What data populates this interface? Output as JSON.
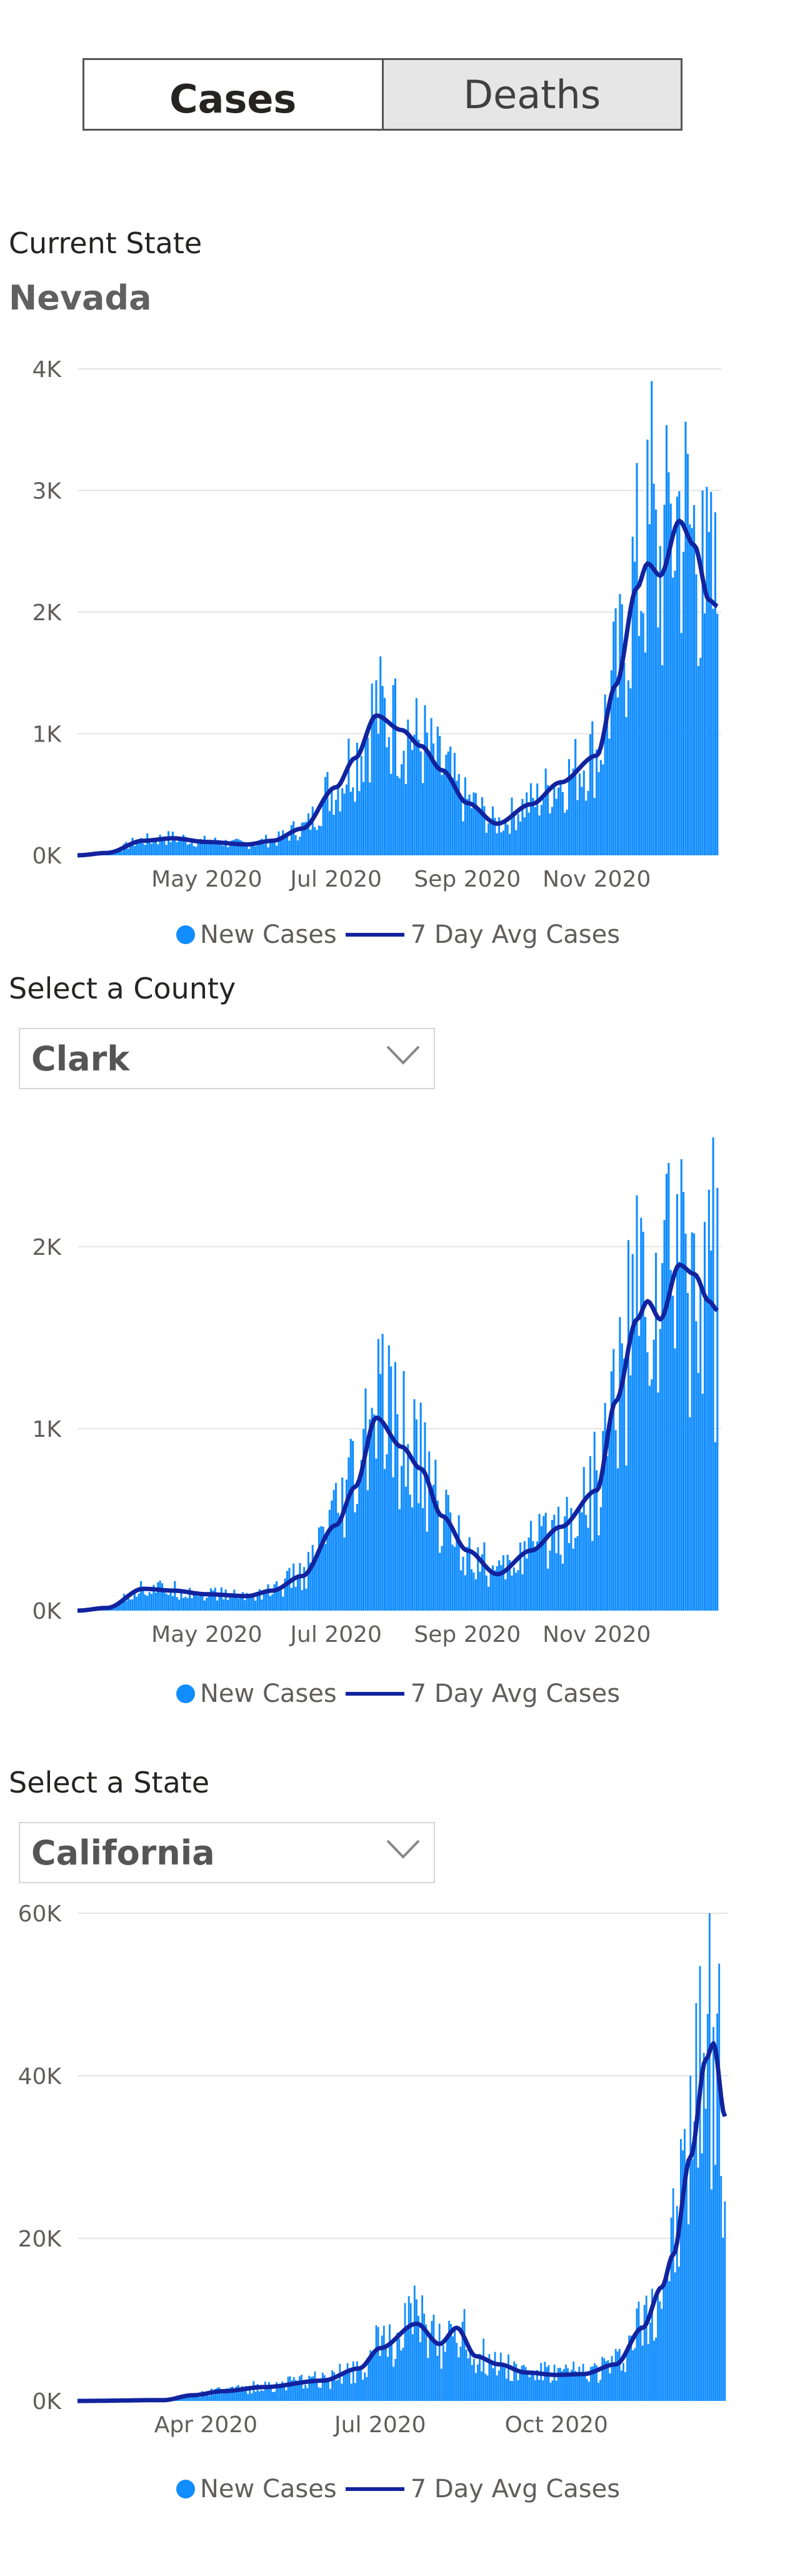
{
  "tabs": {
    "cases": "Cases",
    "deaths": "Deaths",
    "selected": "Cases"
  },
  "state_section": {
    "label": "Current State",
    "name": "Nevada"
  },
  "county_section": {
    "label": "Select a County",
    "selected": "Clark"
  },
  "state_select_section": {
    "label": "Select a State",
    "selected": "California"
  },
  "legend": {
    "bars": "New Cases",
    "line": "7 Day Avg Cases"
  },
  "colors": {
    "bars": "#118dff",
    "line": "#12239e",
    "grid": "#e5e5e5",
    "chevron": "#888888"
  },
  "chart_data": [
    {
      "type": "bar",
      "title": "Nevada",
      "series": [
        {
          "name": "New Cases",
          "kind": "bar"
        },
        {
          "name": "7 Day Avg Cases",
          "kind": "line"
        }
      ],
      "x_range": [
        "2020-03-01",
        "2020-12-28"
      ],
      "x_tick_labels": [
        [
          "2020-05-01",
          "May 2020"
        ],
        [
          "2020-07-01",
          "Jul 2020"
        ],
        [
          "2020-09-01",
          "Sep 2020"
        ],
        [
          "2020-11-01",
          "Nov 2020"
        ]
      ],
      "ylim": [
        0,
        4000
      ],
      "y_ticks": [
        0,
        1000,
        2000,
        3000,
        4000
      ],
      "y_tick_labels": [
        "0K",
        "1K",
        "2K",
        "3K",
        "4K"
      ],
      "avg_anchors": [
        [
          "2020-03-01",
          0
        ],
        [
          "2020-03-15",
          20
        ],
        [
          "2020-04-01",
          120
        ],
        [
          "2020-04-15",
          140
        ],
        [
          "2020-05-01",
          110
        ],
        [
          "2020-05-20",
          90
        ],
        [
          "2020-06-01",
          120
        ],
        [
          "2020-06-15",
          220
        ],
        [
          "2020-07-01",
          560
        ],
        [
          "2020-07-10",
          800
        ],
        [
          "2020-07-20",
          1150
        ],
        [
          "2020-08-01",
          1030
        ],
        [
          "2020-08-10",
          900
        ],
        [
          "2020-08-20",
          700
        ],
        [
          "2020-09-01",
          430
        ],
        [
          "2020-09-15",
          260
        ],
        [
          "2020-10-01",
          420
        ],
        [
          "2020-10-15",
          600
        ],
        [
          "2020-11-01",
          820
        ],
        [
          "2020-11-10",
          1400
        ],
        [
          "2020-11-20",
          2200
        ],
        [
          "2020-11-25",
          2400
        ],
        [
          "2020-12-01",
          2300
        ],
        [
          "2020-12-10",
          2750
        ],
        [
          "2020-12-17",
          2550
        ],
        [
          "2020-12-24",
          2100
        ],
        [
          "2020-12-28",
          2050
        ]
      ],
      "daily_spikes": [
        [
          "2020-07-28",
          1400
        ],
        [
          "2020-11-27",
          3900
        ],
        [
          "2020-12-05",
          3150
        ],
        [
          "2020-12-21",
          3000
        ]
      ]
    },
    {
      "type": "bar",
      "title": "Clark",
      "series": [
        {
          "name": "New Cases",
          "kind": "bar"
        },
        {
          "name": "7 Day Avg Cases",
          "kind": "line"
        }
      ],
      "x_range": [
        "2020-03-01",
        "2020-12-28"
      ],
      "x_tick_labels": [
        [
          "2020-05-01",
          "May 2020"
        ],
        [
          "2020-07-01",
          "Jul 2020"
        ],
        [
          "2020-09-01",
          "Sep 2020"
        ],
        [
          "2020-11-01",
          "Nov 2020"
        ]
      ],
      "ylim": [
        0,
        2700
      ],
      "y_ticks": [
        0,
        1000,
        2000
      ],
      "y_tick_labels": [
        "0K",
        "1K",
        "2K"
      ],
      "avg_anchors": [
        [
          "2020-03-01",
          0
        ],
        [
          "2020-03-15",
          15
        ],
        [
          "2020-04-01",
          120
        ],
        [
          "2020-04-15",
          110
        ],
        [
          "2020-05-01",
          90
        ],
        [
          "2020-05-20",
          80
        ],
        [
          "2020-06-01",
          110
        ],
        [
          "2020-06-15",
          190
        ],
        [
          "2020-07-01",
          470
        ],
        [
          "2020-07-10",
          680
        ],
        [
          "2020-07-20",
          1060
        ],
        [
          "2020-08-01",
          900
        ],
        [
          "2020-08-10",
          780
        ],
        [
          "2020-08-20",
          520
        ],
        [
          "2020-09-01",
          330
        ],
        [
          "2020-09-15",
          200
        ],
        [
          "2020-10-01",
          330
        ],
        [
          "2020-10-15",
          460
        ],
        [
          "2020-11-01",
          660
        ],
        [
          "2020-11-10",
          1150
        ],
        [
          "2020-11-20",
          1600
        ],
        [
          "2020-11-25",
          1700
        ],
        [
          "2020-12-01",
          1600
        ],
        [
          "2020-12-10",
          1900
        ],
        [
          "2020-12-17",
          1850
        ],
        [
          "2020-12-24",
          1700
        ],
        [
          "2020-12-28",
          1650
        ]
      ],
      "daily_spikes": [
        [
          "2020-07-22",
          1300
        ],
        [
          "2020-12-04",
          2400
        ],
        [
          "2020-12-12",
          2300
        ],
        [
          "2020-12-26",
          2600
        ]
      ]
    },
    {
      "type": "bar",
      "title": "California",
      "series": [
        {
          "name": "New Cases",
          "kind": "bar"
        },
        {
          "name": "7 Day Avg Cases",
          "kind": "line"
        }
      ],
      "x_range": [
        "2020-01-25",
        "2020-12-28"
      ],
      "x_tick_labels": [
        [
          "2020-04-01",
          "Apr 2020"
        ],
        [
          "2020-07-01",
          "Jul 2020"
        ],
        [
          "2020-10-01",
          "Oct 2020"
        ]
      ],
      "ylim": [
        0,
        60000
      ],
      "y_ticks": [
        0,
        20000,
        40000,
        60000
      ],
      "y_tick_labels": [
        "0K",
        "20K",
        "40K",
        "60K"
      ],
      "avg_anchors": [
        [
          "2020-01-25",
          0
        ],
        [
          "2020-03-10",
          100
        ],
        [
          "2020-03-25",
          700
        ],
        [
          "2020-04-10",
          1200
        ],
        [
          "2020-05-01",
          1700
        ],
        [
          "2020-06-01",
          2500
        ],
        [
          "2020-06-20",
          4000
        ],
        [
          "2020-07-01",
          6500
        ],
        [
          "2020-07-20",
          9500
        ],
        [
          "2020-08-01",
          7000
        ],
        [
          "2020-08-10",
          9000
        ],
        [
          "2020-08-20",
          5500
        ],
        [
          "2020-09-01",
          4500
        ],
        [
          "2020-09-15",
          3500
        ],
        [
          "2020-10-01",
          3200
        ],
        [
          "2020-10-15",
          3300
        ],
        [
          "2020-11-01",
          4500
        ],
        [
          "2020-11-15",
          9000
        ],
        [
          "2020-11-25",
          14000
        ],
        [
          "2020-12-01",
          18000
        ],
        [
          "2020-12-10",
          30000
        ],
        [
          "2020-12-18",
          42000
        ],
        [
          "2020-12-22",
          44000
        ],
        [
          "2020-12-28",
          35000
        ]
      ],
      "daily_spikes": [
        [
          "2020-07-20",
          12500
        ],
        [
          "2020-12-15",
          53500
        ],
        [
          "2020-12-22",
          46000
        ]
      ]
    }
  ]
}
